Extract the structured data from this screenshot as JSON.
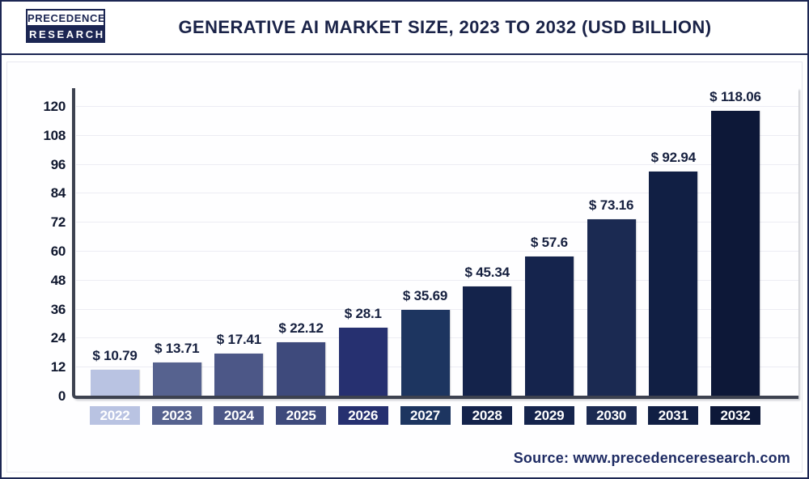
{
  "header": {
    "logo_line1": "PRECEDENCE",
    "logo_line2": "RESEARCH",
    "title": "Generative AI Market Size, 2023 to 2032 (USD Billion)"
  },
  "chart_data": {
    "type": "bar",
    "title": "Generative AI Market Size, 2023 to 2032 (USD Billion)",
    "xlabel": "",
    "ylabel": "",
    "ylim": [
      0,
      120
    ],
    "yticks": [
      0,
      12,
      24,
      36,
      48,
      60,
      72,
      84,
      96,
      108,
      120
    ],
    "grid": true,
    "legend": "none",
    "categories": [
      "2022",
      "2023",
      "2024",
      "2025",
      "2026",
      "2027",
      "2028",
      "2029",
      "2030",
      "2031",
      "2032"
    ],
    "values": [
      10.79,
      13.71,
      17.41,
      22.12,
      28.1,
      35.69,
      45.34,
      57.6,
      73.16,
      92.94,
      118.06
    ],
    "value_labels": [
      "$ 10.79",
      "$ 13.71",
      "$ 17.41",
      "$ 22.12",
      "$ 28.1",
      "$ 35.69",
      "$ 45.34",
      "$ 57.6",
      "$ 73.16",
      "$ 92.94",
      "$ 118.06"
    ],
    "bar_colors": [
      "#b9c3e2",
      "#56628f",
      "#4c5787",
      "#3e4a7c",
      "#263070",
      "#1d3560",
      "#14234b",
      "#15244d",
      "#1b2a52",
      "#111f44",
      "#0d1838"
    ]
  },
  "footer": {
    "source": "Source: www.precedenceresearch.com"
  },
  "colors": {
    "accent_navy": "#1c2653",
    "axis": "#3d4250",
    "gridline": "#ececf3",
    "title_text": "#1a2348",
    "tick_text": "#0f172e",
    "value_text": "#16203f",
    "source_text": "#1e2b63",
    "year_text": "#ffffff"
  }
}
